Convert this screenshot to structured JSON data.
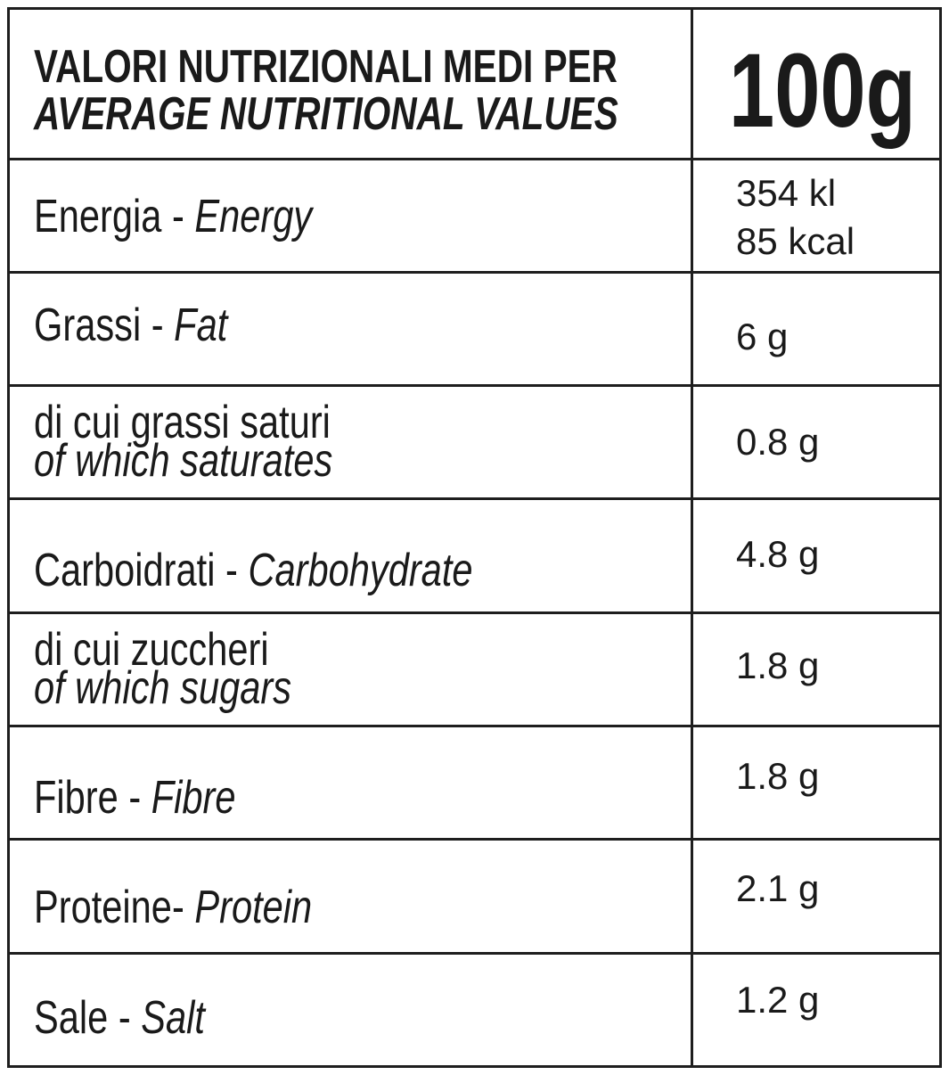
{
  "header": {
    "title": "VALORI NUTRIZIONALI MEDI PER",
    "subtitle": "AVERAGE NUTRITIONAL VALUES",
    "per": "100g"
  },
  "rows": [
    {
      "it": "Energia -",
      "en": "Energy",
      "value": [
        "354 kl",
        "85 kcal"
      ]
    },
    {
      "it": "Grassi -",
      "en": "Fat",
      "value": [
        "6 g"
      ]
    },
    {
      "it": "di cui grassi saturi",
      "en": "of which saturates",
      "value": [
        "0.8 g"
      ]
    },
    {
      "it": "Carboidrati -",
      "en": "Carbohydrate",
      "value": [
        "4.8 g"
      ]
    },
    {
      "it": "di cui zuccheri",
      "en": "of which sugars",
      "value": [
        "1.8 g"
      ]
    },
    {
      "it": "Fibre -",
      "en": "Fibre",
      "value": [
        "1.8 g"
      ]
    },
    {
      "it": "Proteine-",
      "en": "Protein",
      "value": [
        "2.1 g"
      ]
    },
    {
      "it": "Sale -",
      "en": "Salt",
      "value": [
        "1.2 g"
      ]
    }
  ]
}
